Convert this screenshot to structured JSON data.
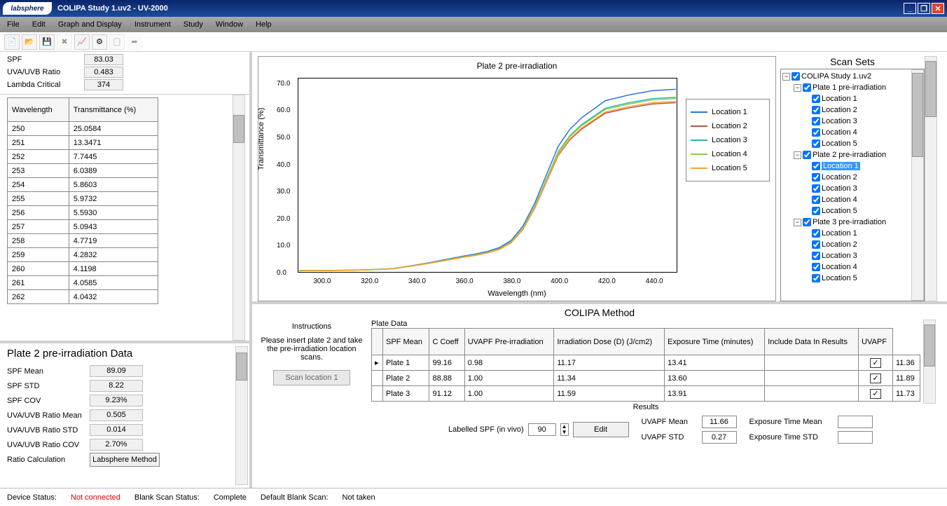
{
  "title": "COLIPA Study 1.uv2 - UV-2000",
  "logo": "labsphere",
  "menus": [
    "File",
    "Edit",
    "Graph and Display",
    "Instrument",
    "Study",
    "Window",
    "Help"
  ],
  "summary": {
    "spf_label": "SPF",
    "spf": "83.03",
    "ratio_label": "UVA/UVB Ratio",
    "ratio": "0.483",
    "lambda_label": "Lambda Critical",
    "lambda": "374"
  },
  "wl_headers": [
    "Wavelength",
    "Transmittance (%)"
  ],
  "wl_rows": [
    [
      "250",
      "25.0584"
    ],
    [
      "251",
      "13.3471"
    ],
    [
      "252",
      "7.7445"
    ],
    [
      "253",
      "6.0389"
    ],
    [
      "254",
      "5.8603"
    ],
    [
      "255",
      "5.9732"
    ],
    [
      "256",
      "5.5930"
    ],
    [
      "257",
      "5.0943"
    ],
    [
      "258",
      "4.7719"
    ],
    [
      "259",
      "4.2832"
    ],
    [
      "260",
      "4.1198"
    ],
    [
      "261",
      "4.0585"
    ],
    [
      "262",
      "4.0432"
    ]
  ],
  "lower": {
    "title": "Plate 2 pre-irradiation Data",
    "rows": [
      [
        "SPF Mean",
        "89.09"
      ],
      [
        "SPF STD",
        "8.22"
      ],
      [
        "SPF COV",
        "9.23%"
      ],
      [
        "UVA/UVB Ratio Mean",
        "0.505"
      ],
      [
        "UVA/UVB Ratio STD",
        "0.014"
      ],
      [
        "UVA/UVB Ratio COV",
        "2.70%"
      ]
    ],
    "ratio_calc_label": "Ratio Calculation",
    "ratio_calc_btn": "Labsphere Method"
  },
  "chart": {
    "title": "Plate 2 pre-irradiation",
    "xlabel": "Wavelength (nm)",
    "ylabel": "Transmittance (%)",
    "xlim": [
      290,
      450
    ],
    "ylim": [
      0,
      72
    ],
    "xticks": [
      300,
      320,
      340,
      360,
      380,
      400,
      420,
      440
    ],
    "yticks": [
      0,
      10,
      20,
      30,
      40,
      50,
      60,
      70
    ],
    "series": [
      {
        "name": "Location 1",
        "color": "#2e75d6"
      },
      {
        "name": "Location 2",
        "color": "#c0504d"
      },
      {
        "name": "Location 3",
        "color": "#2bb5b2"
      },
      {
        "name": "Location 4",
        "color": "#8fce4d"
      },
      {
        "name": "Location 5",
        "color": "#f5a623"
      }
    ],
    "base_x": [
      290,
      300,
      310,
      320,
      330,
      340,
      345,
      350,
      355,
      360,
      365,
      370,
      375,
      380,
      385,
      390,
      395,
      400,
      405,
      410,
      415,
      420,
      430,
      440,
      450
    ],
    "base_y": [
      0.5,
      0.5,
      0.6,
      0.8,
      1.2,
      2.5,
      3.2,
      4.0,
      4.8,
      5.6,
      6.3,
      7.2,
      8.5,
      11,
      16,
      24,
      34,
      44,
      50,
      54,
      57,
      60,
      62,
      63.5,
      64
    ],
    "offsets": [
      4,
      -1,
      1,
      0.5,
      -0.5
    ]
  },
  "scansets": {
    "title": "Scan Sets",
    "root": "COLIPA Study 1.uv2",
    "plates": [
      "Plate 1 pre-irradiation",
      "Plate 2 pre-irradiation",
      "Plate 3 pre-irradiation"
    ],
    "locs": [
      "Location 1",
      "Location 2",
      "Location 3",
      "Location 4",
      "Location 5"
    ],
    "selected": {
      "plate": 1,
      "loc": 0
    }
  },
  "method": {
    "title": "COLIPA Method",
    "instr_label": "Instructions",
    "instr_text": "Please insert plate 2 and take the pre-irradiation location scans.",
    "scan_btn": "Scan location 1",
    "plate_data_label": "Plate Data",
    "headers": [
      "",
      "SPF Mean",
      "C Coeff",
      "UVAPF Pre-irradiation",
      "Irradiation Dose (D) (J/cm2)",
      "Exposure Time (minutes)",
      "Include Data In Results",
      "UVAPF"
    ],
    "rows": [
      [
        "Plate 1",
        "99.16",
        "0.98",
        "11.17",
        "13.41",
        "",
        "✓",
        "11.36"
      ],
      [
        "Plate 2",
        "88.88",
        "1.00",
        "11.34",
        "13.60",
        "",
        "✓",
        "11.89"
      ],
      [
        "Plate 3",
        "91.12",
        "1.00",
        "11.59",
        "13.91",
        "",
        "✓",
        "11.73"
      ]
    ],
    "results_label": "Results",
    "labelled_spf_label": "Labelled SPF (in vivo)",
    "labelled_spf": "90",
    "edit_btn": "Edit",
    "uvapf_mean_label": "UVAPF Mean",
    "uvapf_mean": "11.66",
    "uvapf_std_label": "UVAPF STD",
    "uvapf_std": "0.27",
    "exp_mean_label": "Exposure Time Mean",
    "exp_mean": "",
    "exp_std_label": "Exposure Time STD",
    "exp_std": ""
  },
  "status": {
    "dev_label": "Device Status:",
    "dev": "Not connected",
    "blank_label": "Blank Scan Status:",
    "blank": "Complete",
    "default_label": "Default Blank Scan:",
    "default": "Not taken"
  }
}
